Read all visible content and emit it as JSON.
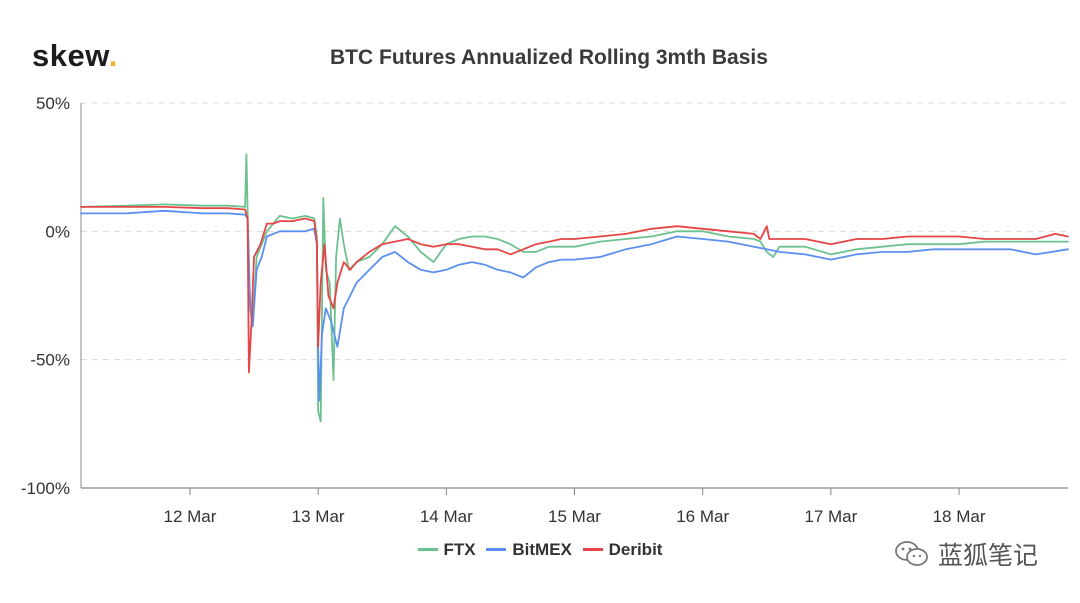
{
  "header": {
    "logo_text": "skew",
    "logo_dot": "."
  },
  "watermark": {
    "text": "蓝狐笔记",
    "icon": "wechat-icon"
  },
  "colors": {
    "FTX": "#6cc28f",
    "BitMEX": "#5b8ff0",
    "Deribit": "#e64545",
    "grid": "#d9d9d9",
    "axis": "#888888",
    "logo_accent": "#f2b233"
  },
  "chart_data": {
    "type": "line",
    "title": "BTC Futures Annualized Rolling 3mth Basis",
    "xlabel": "",
    "ylabel": "",
    "x_ticks": [
      "12 Mar",
      "13 Mar",
      "14 Mar",
      "15 Mar",
      "16 Mar",
      "17 Mar",
      "18 Mar"
    ],
    "x_tick_positions": [
      12,
      13,
      14,
      15,
      16,
      17,
      18
    ],
    "xlim": [
      11.15,
      18.85
    ],
    "y_ticks": [
      "50%",
      "0%",
      "-50%",
      "-100%"
    ],
    "y_tick_values": [
      50,
      0,
      -50,
      -100
    ],
    "ylim": [
      -100,
      50
    ],
    "grid": "horizontal dashed",
    "legend_position": "bottom-center",
    "series": [
      {
        "name": "FTX",
        "points": [
          [
            11.15,
            9.5
          ],
          [
            11.5,
            10
          ],
          [
            11.8,
            10.5
          ],
          [
            12.1,
            10
          ],
          [
            12.3,
            10
          ],
          [
            12.43,
            9.5
          ],
          [
            12.44,
            30
          ],
          [
            12.45,
            8
          ],
          [
            12.47,
            -30
          ],
          [
            12.49,
            -35
          ],
          [
            12.52,
            -10
          ],
          [
            12.56,
            -5
          ],
          [
            12.6,
            0
          ],
          [
            12.65,
            3
          ],
          [
            12.7,
            6
          ],
          [
            12.8,
            5
          ],
          [
            12.9,
            6
          ],
          [
            12.97,
            5
          ],
          [
            12.99,
            -2
          ],
          [
            13.0,
            -70
          ],
          [
            13.02,
            -74
          ],
          [
            13.04,
            13
          ],
          [
            13.06,
            -15
          ],
          [
            13.09,
            -20
          ],
          [
            13.12,
            -58
          ],
          [
            13.14,
            -10
          ],
          [
            13.17,
            5
          ],
          [
            13.2,
            -5
          ],
          [
            13.24,
            -15
          ],
          [
            13.3,
            -12
          ],
          [
            13.4,
            -10
          ],
          [
            13.5,
            -5
          ],
          [
            13.6,
            2
          ],
          [
            13.7,
            -2
          ],
          [
            13.8,
            -8
          ],
          [
            13.9,
            -12
          ],
          [
            14.0,
            -5
          ],
          [
            14.1,
            -3
          ],
          [
            14.2,
            -2
          ],
          [
            14.3,
            -2
          ],
          [
            14.4,
            -3
          ],
          [
            14.5,
            -5
          ],
          [
            14.6,
            -8
          ],
          [
            14.7,
            -8
          ],
          [
            14.8,
            -6
          ],
          [
            14.9,
            -6
          ],
          [
            15.0,
            -6
          ],
          [
            15.2,
            -4
          ],
          [
            15.4,
            -3
          ],
          [
            15.6,
            -2
          ],
          [
            15.8,
            0
          ],
          [
            16.0,
            0
          ],
          [
            16.2,
            -2
          ],
          [
            16.4,
            -3
          ],
          [
            16.45,
            -4
          ],
          [
            16.5,
            -8
          ],
          [
            16.55,
            -10
          ],
          [
            16.6,
            -6
          ],
          [
            16.8,
            -6
          ],
          [
            17.0,
            -9
          ],
          [
            17.2,
            -7
          ],
          [
            17.4,
            -6
          ],
          [
            17.6,
            -5
          ],
          [
            17.8,
            -5
          ],
          [
            18.0,
            -5
          ],
          [
            18.2,
            -4
          ],
          [
            18.4,
            -4
          ],
          [
            18.6,
            -4
          ],
          [
            18.85,
            -4
          ]
        ]
      },
      {
        "name": "BitMEX",
        "points": [
          [
            11.15,
            7
          ],
          [
            11.5,
            7
          ],
          [
            11.8,
            8
          ],
          [
            12.1,
            7
          ],
          [
            12.3,
            7
          ],
          [
            12.43,
            6.5
          ],
          [
            12.45,
            5
          ],
          [
            12.47,
            -30
          ],
          [
            12.49,
            -37
          ],
          [
            12.52,
            -15
          ],
          [
            12.56,
            -10
          ],
          [
            12.6,
            -2
          ],
          [
            12.65,
            -1
          ],
          [
            12.7,
            0
          ],
          [
            12.8,
            0
          ],
          [
            12.9,
            0
          ],
          [
            12.97,
            1
          ],
          [
            12.99,
            -5
          ],
          [
            13.0,
            -45
          ],
          [
            13.01,
            -66
          ],
          [
            13.03,
            -40
          ],
          [
            13.06,
            -30
          ],
          [
            13.1,
            -35
          ],
          [
            13.15,
            -45
          ],
          [
            13.2,
            -30
          ],
          [
            13.25,
            -25
          ],
          [
            13.3,
            -20
          ],
          [
            13.4,
            -15
          ],
          [
            13.5,
            -10
          ],
          [
            13.6,
            -8
          ],
          [
            13.7,
            -12
          ],
          [
            13.8,
            -15
          ],
          [
            13.9,
            -16
          ],
          [
            14.0,
            -15
          ],
          [
            14.1,
            -13
          ],
          [
            14.2,
            -12
          ],
          [
            14.3,
            -13
          ],
          [
            14.4,
            -15
          ],
          [
            14.5,
            -16
          ],
          [
            14.6,
            -18
          ],
          [
            14.7,
            -14
          ],
          [
            14.8,
            -12
          ],
          [
            14.9,
            -11
          ],
          [
            15.0,
            -11
          ],
          [
            15.2,
            -10
          ],
          [
            15.4,
            -7
          ],
          [
            15.6,
            -5
          ],
          [
            15.8,
            -2
          ],
          [
            16.0,
            -3
          ],
          [
            16.2,
            -4
          ],
          [
            16.4,
            -6
          ],
          [
            16.5,
            -7
          ],
          [
            16.6,
            -8
          ],
          [
            16.8,
            -9
          ],
          [
            17.0,
            -11
          ],
          [
            17.2,
            -9
          ],
          [
            17.4,
            -8
          ],
          [
            17.6,
            -8
          ],
          [
            17.8,
            -7
          ],
          [
            18.0,
            -7
          ],
          [
            18.2,
            -7
          ],
          [
            18.4,
            -7
          ],
          [
            18.6,
            -9
          ],
          [
            18.85,
            -7
          ]
        ]
      },
      {
        "name": "Deribit",
        "points": [
          [
            11.15,
            9.5
          ],
          [
            11.5,
            9.5
          ],
          [
            11.8,
            9.5
          ],
          [
            12.1,
            9
          ],
          [
            12.3,
            9
          ],
          [
            12.43,
            8.5
          ],
          [
            12.45,
            5
          ],
          [
            12.46,
            -55
          ],
          [
            12.48,
            -35
          ],
          [
            12.5,
            -10
          ],
          [
            12.55,
            -5
          ],
          [
            12.6,
            3
          ],
          [
            12.65,
            3
          ],
          [
            12.7,
            4
          ],
          [
            12.8,
            4
          ],
          [
            12.9,
            5
          ],
          [
            12.97,
            4
          ],
          [
            12.99,
            -5
          ],
          [
            13.0,
            -45
          ],
          [
            13.02,
            -20
          ],
          [
            13.05,
            -5
          ],
          [
            13.08,
            -25
          ],
          [
            13.12,
            -30
          ],
          [
            13.15,
            -20
          ],
          [
            13.2,
            -12
          ],
          [
            13.25,
            -15
          ],
          [
            13.3,
            -12
          ],
          [
            13.4,
            -8
          ],
          [
            13.5,
            -5
          ],
          [
            13.6,
            -4
          ],
          [
            13.7,
            -3
          ],
          [
            13.8,
            -5
          ],
          [
            13.9,
            -6
          ],
          [
            14.0,
            -5
          ],
          [
            14.1,
            -5
          ],
          [
            14.2,
            -6
          ],
          [
            14.3,
            -7
          ],
          [
            14.4,
            -7
          ],
          [
            14.5,
            -9
          ],
          [
            14.6,
            -7
          ],
          [
            14.7,
            -5
          ],
          [
            14.8,
            -4
          ],
          [
            14.9,
            -3
          ],
          [
            15.0,
            -3
          ],
          [
            15.2,
            -2
          ],
          [
            15.4,
            -1
          ],
          [
            15.6,
            1
          ],
          [
            15.8,
            2
          ],
          [
            16.0,
            1
          ],
          [
            16.2,
            0
          ],
          [
            16.4,
            -1
          ],
          [
            16.45,
            -3
          ],
          [
            16.5,
            2
          ],
          [
            16.52,
            -3
          ],
          [
            16.6,
            -3
          ],
          [
            16.8,
            -3
          ],
          [
            17.0,
            -5
          ],
          [
            17.2,
            -3
          ],
          [
            17.4,
            -3
          ],
          [
            17.6,
            -2
          ],
          [
            17.8,
            -2
          ],
          [
            18.0,
            -2
          ],
          [
            18.2,
            -3
          ],
          [
            18.4,
            -3
          ],
          [
            18.6,
            -3
          ],
          [
            18.75,
            -1
          ],
          [
            18.85,
            -2
          ]
        ]
      }
    ]
  }
}
